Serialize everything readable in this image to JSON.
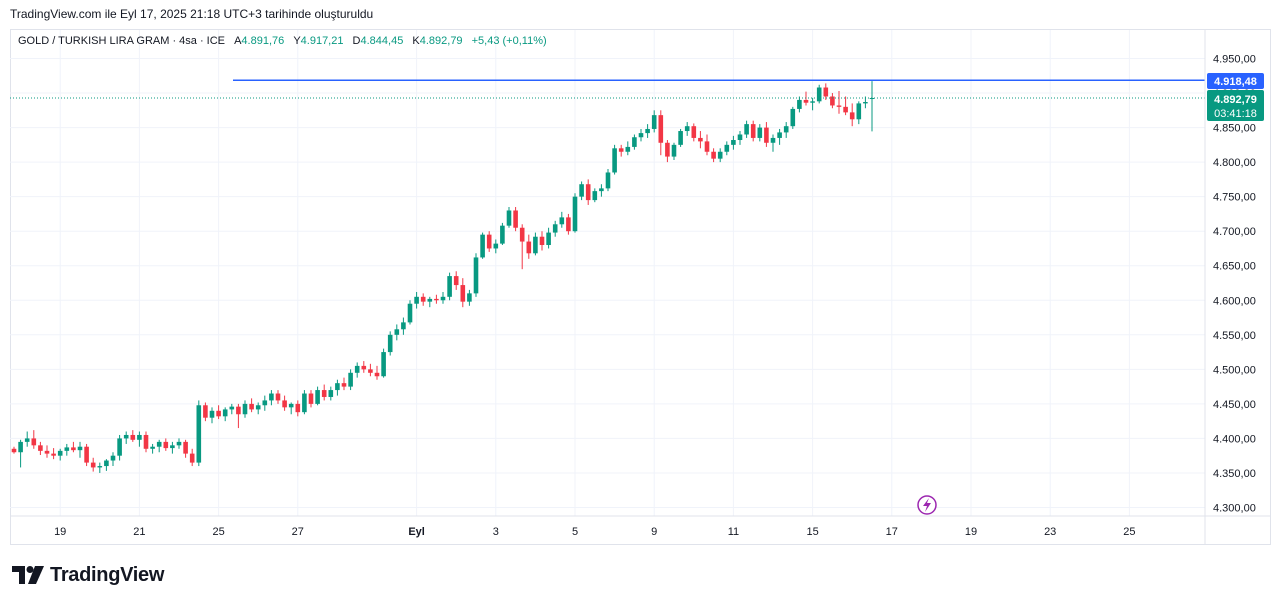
{
  "header": {
    "caption": "TradingView.com ile Eyl 17, 2025 21:18 UTC+3 tarihinde oluşturuldu"
  },
  "legend": {
    "symbol": "GOLD / TURKISH LIRA GRAM · 4sa · ICE",
    "open_label": "A",
    "open": "4.891,76",
    "high_label": "Y",
    "high": "4.917,21",
    "low_label": "D",
    "low": "4.844,45",
    "close_label": "K",
    "close": "4.892,79",
    "change": "+5,43 (+0,11%)"
  },
  "price_tags": {
    "horizontal_line": "4.918,48",
    "last_price": "4.892,79",
    "countdown": "03:41:18"
  },
  "colors": {
    "up": "#089981",
    "down": "#f23645",
    "line": "#2962ff",
    "grid": "#f0f3fa",
    "lightning": "#9c27b0"
  },
  "icons": {
    "alert": "lightning-icon",
    "brand": "tradingview-logo"
  },
  "brand": {
    "name": "TradingView"
  },
  "chart_data": {
    "type": "candlestick",
    "title": "GOLD / TURKISH LIRA GRAM",
    "interval": "4sa",
    "ylim": [
      4280,
      4980
    ],
    "y_ticks": [
      "4.950,00",
      "4.900,00",
      "4.850,00",
      "4.800,00",
      "4.750,00",
      "4.700,00",
      "4.650,00",
      "4.600,00",
      "4.550,00",
      "4.500,00",
      "4.450,00",
      "4.400,00",
      "4.350,00",
      "4.300,00"
    ],
    "y_tick_values": [
      4950,
      4900,
      4850,
      4800,
      4750,
      4700,
      4650,
      4600,
      4550,
      4500,
      4450,
      4400,
      4350,
      4300
    ],
    "x_ticks": [
      "19",
      "21",
      "25",
      "27",
      "Eyl",
      "3",
      "5",
      "9",
      "11",
      "15",
      "17",
      "19",
      "23",
      "25"
    ],
    "x_tick_index": [
      7,
      19,
      31,
      43,
      61,
      73,
      85,
      97,
      109,
      121,
      133,
      145,
      157,
      169
    ],
    "horizontal_line": 4918.48,
    "last_close": 4892.79,
    "candles": [
      [
        4385,
        4388,
        4378,
        4380
      ],
      [
        4380,
        4398,
        4358,
        4395
      ],
      [
        4395,
        4410,
        4388,
        4400
      ],
      [
        4400,
        4412,
        4385,
        4390
      ],
      [
        4390,
        4395,
        4376,
        4382
      ],
      [
        4382,
        4390,
        4372,
        4378
      ],
      [
        4378,
        4386,
        4370,
        4375
      ],
      [
        4375,
        4385,
        4368,
        4382
      ],
      [
        4382,
        4392,
        4375,
        4387
      ],
      [
        4387,
        4395,
        4380,
        4383
      ],
      [
        4383,
        4395,
        4372,
        4388
      ],
      [
        4388,
        4392,
        4360,
        4365
      ],
      [
        4365,
        4372,
        4352,
        4358
      ],
      [
        4358,
        4365,
        4350,
        4360
      ],
      [
        4360,
        4370,
        4353,
        4368
      ],
      [
        4368,
        4380,
        4360,
        4375
      ],
      [
        4375,
        4405,
        4368,
        4400
      ],
      [
        4400,
        4410,
        4392,
        4405
      ],
      [
        4405,
        4412,
        4395,
        4398
      ],
      [
        4398,
        4410,
        4388,
        4405
      ],
      [
        4405,
        4410,
        4380,
        4385
      ],
      [
        4385,
        4392,
        4378,
        4388
      ],
      [
        4388,
        4398,
        4380,
        4395
      ],
      [
        4395,
        4400,
        4382,
        4386
      ],
      [
        4386,
        4395,
        4378,
        4390
      ],
      [
        4390,
        4400,
        4385,
        4395
      ],
      [
        4395,
        4398,
        4372,
        4378
      ],
      [
        4378,
        4385,
        4360,
        4365
      ],
      [
        4365,
        4455,
        4360,
        4448
      ],
      [
        4448,
        4452,
        4425,
        4430
      ],
      [
        4430,
        4445,
        4422,
        4440
      ],
      [
        4440,
        4448,
        4428,
        4432
      ],
      [
        4432,
        4445,
        4425,
        4442
      ],
      [
        4442,
        4450,
        4435,
        4446
      ],
      [
        4446,
        4450,
        4415,
        4435
      ],
      [
        4435,
        4455,
        4430,
        4450
      ],
      [
        4450,
        4458,
        4438,
        4442
      ],
      [
        4442,
        4452,
        4435,
        4448
      ],
      [
        4448,
        4462,
        4440,
        4455
      ],
      [
        4455,
        4470,
        4448,
        4465
      ],
      [
        4465,
        4470,
        4450,
        4455
      ],
      [
        4455,
        4462,
        4440,
        4445
      ],
      [
        4445,
        4452,
        4435,
        4450
      ],
      [
        4450,
        4455,
        4432,
        4438
      ],
      [
        4438,
        4470,
        4435,
        4465
      ],
      [
        4465,
        4470,
        4445,
        4450
      ],
      [
        4450,
        4475,
        4448,
        4470
      ],
      [
        4470,
        4478,
        4455,
        4460
      ],
      [
        4460,
        4475,
        4455,
        4470
      ],
      [
        4470,
        4485,
        4462,
        4480
      ],
      [
        4480,
        4488,
        4470,
        4475
      ],
      [
        4475,
        4500,
        4470,
        4495
      ],
      [
        4495,
        4510,
        4488,
        4505
      ],
      [
        4505,
        4512,
        4495,
        4500
      ],
      [
        4500,
        4508,
        4490,
        4495
      ],
      [
        4495,
        4505,
        4485,
        4490
      ],
      [
        4490,
        4530,
        4488,
        4525
      ],
      [
        4525,
        4555,
        4520,
        4550
      ],
      [
        4550,
        4565,
        4542,
        4558
      ],
      [
        4558,
        4575,
        4550,
        4568
      ],
      [
        4568,
        4600,
        4565,
        4595
      ],
      [
        4595,
        4612,
        4588,
        4605
      ],
      [
        4605,
        4610,
        4592,
        4598
      ],
      [
        4598,
        4605,
        4590,
        4602
      ],
      [
        4602,
        4608,
        4595,
        4600
      ],
      [
        4600,
        4612,
        4595,
        4605
      ],
      [
        4605,
        4640,
        4600,
        4635
      ],
      [
        4635,
        4642,
        4615,
        4622
      ],
      [
        4622,
        4632,
        4590,
        4598
      ],
      [
        4598,
        4615,
        4592,
        4610
      ],
      [
        4610,
        4668,
        4605,
        4662
      ],
      [
        4662,
        4698,
        4660,
        4695
      ],
      [
        4695,
        4700,
        4670,
        4675
      ],
      [
        4675,
        4688,
        4668,
        4682
      ],
      [
        4682,
        4712,
        4680,
        4708
      ],
      [
        4708,
        4735,
        4705,
        4730
      ],
      [
        4730,
        4735,
        4700,
        4705
      ],
      [
        4705,
        4710,
        4645,
        4685
      ],
      [
        4685,
        4695,
        4660,
        4668
      ],
      [
        4668,
        4698,
        4665,
        4692
      ],
      [
        4692,
        4700,
        4672,
        4680
      ],
      [
        4680,
        4705,
        4675,
        4698
      ],
      [
        4698,
        4715,
        4692,
        4710
      ],
      [
        4710,
        4728,
        4705,
        4720
      ],
      [
        4720,
        4725,
        4695,
        4700
      ],
      [
        4700,
        4755,
        4698,
        4750
      ],
      [
        4750,
        4772,
        4745,
        4768
      ],
      [
        4768,
        4775,
        4738,
        4745
      ],
      [
        4745,
        4762,
        4742,
        4758
      ],
      [
        4758,
        4768,
        4750,
        4762
      ],
      [
        4762,
        4790,
        4758,
        4785
      ],
      [
        4785,
        4825,
        4782,
        4820
      ],
      [
        4820,
        4825,
        4808,
        4815
      ],
      [
        4815,
        4830,
        4810,
        4822
      ],
      [
        4822,
        4840,
        4818,
        4836
      ],
      [
        4836,
        4848,
        4830,
        4842
      ],
      [
        4842,
        4855,
        4835,
        4848
      ],
      [
        4848,
        4875,
        4843,
        4868
      ],
      [
        4868,
        4875,
        4810,
        4828
      ],
      [
        4828,
        4832,
        4800,
        4808
      ],
      [
        4808,
        4828,
        4803,
        4825
      ],
      [
        4825,
        4848,
        4822,
        4845
      ],
      [
        4845,
        4858,
        4838,
        4852
      ],
      [
        4852,
        4856,
        4830,
        4835
      ],
      [
        4835,
        4845,
        4820,
        4830
      ],
      [
        4830,
        4840,
        4810,
        4815
      ],
      [
        4815,
        4820,
        4800,
        4805
      ],
      [
        4805,
        4820,
        4800,
        4815
      ],
      [
        4815,
        4830,
        4810,
        4825
      ],
      [
        4825,
        4838,
        4818,
        4832
      ],
      [
        4832,
        4845,
        4825,
        4840
      ],
      [
        4840,
        4860,
        4835,
        4855
      ],
      [
        4855,
        4860,
        4830,
        4835
      ],
      [
        4835,
        4855,
        4830,
        4850
      ],
      [
        4850,
        4858,
        4822,
        4828
      ],
      [
        4828,
        4840,
        4815,
        4835
      ],
      [
        4835,
        4848,
        4825,
        4843
      ],
      [
        4843,
        4858,
        4835,
        4852
      ],
      [
        4852,
        4880,
        4848,
        4877
      ],
      [
        4877,
        4895,
        4872,
        4890
      ],
      [
        4890,
        4902,
        4882,
        4886
      ],
      [
        4886,
        4893,
        4875,
        4888
      ],
      [
        4888,
        4912,
        4885,
        4908
      ],
      [
        4908,
        4914,
        4890,
        4895
      ],
      [
        4895,
        4900,
        4878,
        4882
      ],
      [
        4882,
        4903,
        4870,
        4880
      ],
      [
        4880,
        4895,
        4868,
        4872
      ],
      [
        4872,
        4885,
        4852,
        4862
      ],
      [
        4862,
        4888,
        4855,
        4885
      ],
      [
        4885,
        4895,
        4878,
        4887
      ],
      [
        4891.76,
        4917.21,
        4844.45,
        4892.79
      ]
    ]
  }
}
